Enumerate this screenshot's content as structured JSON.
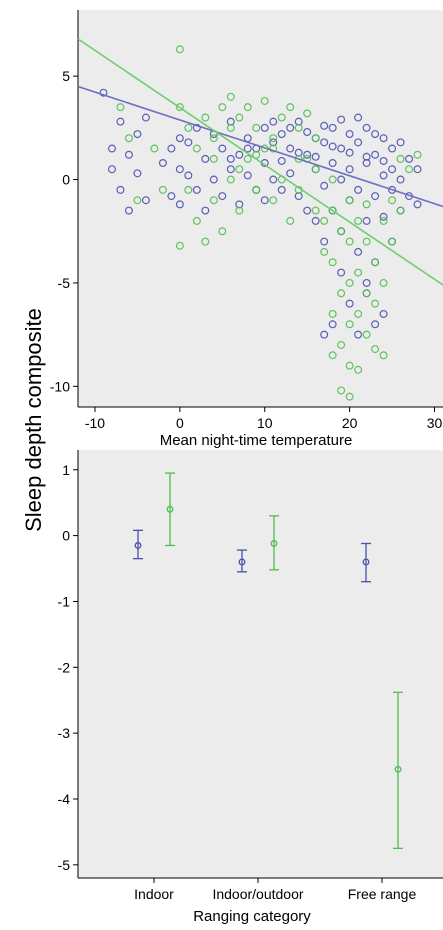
{
  "figure": {
    "ylabel": "Sleep depth composite"
  },
  "colors": {
    "series_blue": "#4a4fb0",
    "series_green": "#4fbf4f",
    "panel_bg": "#ececec",
    "axis": "#000000"
  },
  "chart_data": [
    {
      "type": "scatter",
      "xlabel": "Mean night-time temperature",
      "xlim": [
        -12,
        31
      ],
      "ylim": [
        -11,
        8.2
      ],
      "xticks": [
        -10,
        0,
        10,
        20,
        30
      ],
      "yticks": [
        5,
        0,
        -5,
        -10
      ],
      "grid": false,
      "series": [
        {
          "color": "#4a4fb0",
          "marker": "open-circle",
          "points": [
            [
              -9,
              4.2
            ],
            [
              -8,
              1.5
            ],
            [
              -8,
              0.5
            ],
            [
              -7,
              2.8
            ],
            [
              -7,
              -0.5
            ],
            [
              -6,
              1.2
            ],
            [
              -6,
              -1.5
            ],
            [
              -5,
              2.2
            ],
            [
              -5,
              0.3
            ],
            [
              -4,
              3
            ],
            [
              -4,
              -1
            ],
            [
              -2,
              0.8
            ],
            [
              -1,
              1.5
            ],
            [
              -1,
              -0.8
            ],
            [
              0,
              2
            ],
            [
              0,
              0.5
            ],
            [
              0,
              -1.2
            ],
            [
              1,
              1.8
            ],
            [
              1,
              0.2
            ],
            [
              2,
              2.5
            ],
            [
              2,
              -0.5
            ],
            [
              3,
              1
            ],
            [
              3,
              -1.5
            ],
            [
              4,
              2.2
            ],
            [
              4,
              0
            ],
            [
              5,
              1.5
            ],
            [
              5,
              -0.8
            ],
            [
              6,
              2.8
            ],
            [
              6,
              0.5
            ],
            [
              7,
              1.2
            ],
            [
              7,
              -1.2
            ],
            [
              8,
              2
            ],
            [
              8,
              0.2
            ],
            [
              9,
              1.5
            ],
            [
              9,
              -0.5
            ],
            [
              10,
              2.5
            ],
            [
              10,
              0.8
            ],
            [
              10,
              -1
            ],
            [
              11,
              1.8
            ],
            [
              11,
              0
            ],
            [
              12,
              2.2
            ],
            [
              12,
              -0.5
            ],
            [
              13,
              1.5
            ],
            [
              13,
              0.3
            ],
            [
              14,
              2.8
            ],
            [
              14,
              -0.8
            ],
            [
              15,
              1.2
            ],
            [
              15,
              -1.5
            ],
            [
              16,
              2
            ],
            [
              16,
              0.5
            ],
            [
              16,
              -2
            ],
            [
              17,
              1.8
            ],
            [
              17,
              -0.3
            ],
            [
              17,
              -3
            ],
            [
              18,
              2.5
            ],
            [
              18,
              0.8
            ],
            [
              18,
              -1.5
            ],
            [
              18,
              -7
            ],
            [
              19,
              1.5
            ],
            [
              19,
              0
            ],
            [
              19,
              -2.5
            ],
            [
              19,
              -4.5
            ],
            [
              20,
              2.2
            ],
            [
              20,
              0.5
            ],
            [
              20,
              -1
            ],
            [
              20,
              -6
            ],
            [
              21,
              1.8
            ],
            [
              21,
              -0.5
            ],
            [
              21,
              -3.5
            ],
            [
              22,
              2.5
            ],
            [
              22,
              0.8
            ],
            [
              22,
              -2
            ],
            [
              22,
              -5
            ],
            [
              23,
              1.2
            ],
            [
              23,
              -0.8
            ],
            [
              23,
              -4
            ],
            [
              24,
              2
            ],
            [
              24,
              0.2
            ],
            [
              24,
              -1.8
            ],
            [
              24,
              -6.5
            ],
            [
              25,
              1.5
            ],
            [
              25,
              -0.5
            ],
            [
              25,
              -3
            ],
            [
              26,
              1.8
            ],
            [
              26,
              0
            ],
            [
              26,
              -1.5
            ],
            [
              27,
              1
            ],
            [
              27,
              -0.8
            ],
            [
              28,
              0.5
            ],
            [
              28,
              -1.2
            ],
            [
              6,
              1
            ],
            [
              8,
              1.5
            ],
            [
              11,
              2.8
            ],
            [
              13,
              2.5
            ],
            [
              15,
              2.3
            ],
            [
              17,
              2.6
            ],
            [
              19,
              2.9
            ],
            [
              21,
              3
            ],
            [
              23,
              2.2
            ],
            [
              25,
              0.5
            ],
            [
              22,
              -5.5
            ],
            [
              21,
              -7.5
            ],
            [
              17,
              -7.5
            ],
            [
              23,
              -7
            ],
            [
              12,
              0.9
            ],
            [
              14,
              1.3
            ],
            [
              16,
              1.1
            ],
            [
              18,
              1.6
            ],
            [
              20,
              1.3
            ],
            [
              22,
              1.1
            ],
            [
              24,
              0.9
            ]
          ]
        },
        {
          "color": "#4fbf4f",
          "marker": "open-circle",
          "points": [
            [
              -7,
              3.5
            ],
            [
              -6,
              2
            ],
            [
              -5,
              -1
            ],
            [
              -3,
              1.5
            ],
            [
              -2,
              -0.5
            ],
            [
              0,
              6.3
            ],
            [
              0,
              3.5
            ],
            [
              0,
              -3.2
            ],
            [
              1,
              2.5
            ],
            [
              1,
              -0.5
            ],
            [
              2,
              1.5
            ],
            [
              2,
              -2
            ],
            [
              3,
              3
            ],
            [
              3,
              -3
            ],
            [
              4,
              2
            ],
            [
              4,
              -1
            ],
            [
              5,
              3.5
            ],
            [
              5,
              -2.5
            ],
            [
              6,
              2.5
            ],
            [
              6,
              0
            ],
            [
              6,
              4
            ],
            [
              7,
              3
            ],
            [
              7,
              -1.5
            ],
            [
              8,
              3.5
            ],
            [
              8,
              1
            ],
            [
              9,
              2.5
            ],
            [
              9,
              -0.5
            ],
            [
              10,
              3.8
            ],
            [
              10,
              1.5
            ],
            [
              11,
              2
            ],
            [
              11,
              -1
            ],
            [
              12,
              3
            ],
            [
              12,
              0
            ],
            [
              13,
              3.5
            ],
            [
              13,
              -2
            ],
            [
              14,
              2.5
            ],
            [
              14,
              -0.5
            ],
            [
              15,
              3.2
            ],
            [
              15,
              1
            ],
            [
              16,
              2
            ],
            [
              16,
              -1.5
            ],
            [
              17,
              -2
            ],
            [
              17,
              -3.5
            ],
            [
              18,
              -1.5
            ],
            [
              18,
              -4
            ],
            [
              18,
              -6.5
            ],
            [
              18,
              -8.5
            ],
            [
              19,
              -2.5
            ],
            [
              19,
              -5.5
            ],
            [
              19,
              -8
            ],
            [
              19,
              -10.2
            ],
            [
              20,
              -3
            ],
            [
              20,
              -5
            ],
            [
              20,
              -7
            ],
            [
              20,
              -9
            ],
            [
              20,
              -10.5
            ],
            [
              21,
              -2
            ],
            [
              21,
              -4.5
            ],
            [
              21,
              -6.5
            ],
            [
              21,
              -9.2
            ],
            [
              22,
              -3
            ],
            [
              22,
              -5.5
            ],
            [
              22,
              -7.5
            ],
            [
              23,
              -4
            ],
            [
              23,
              -6
            ],
            [
              23,
              -8.2
            ],
            [
              24,
              -2
            ],
            [
              24,
              -5
            ],
            [
              24,
              -8.5
            ],
            [
              25,
              -1
            ],
            [
              25,
              -3
            ],
            [
              26,
              1
            ],
            [
              26,
              -1.5
            ],
            [
              27,
              0.5
            ],
            [
              28,
              1.2
            ],
            [
              4,
              1
            ],
            [
              7,
              0.5
            ],
            [
              9,
              1.2
            ],
            [
              11,
              1.5
            ],
            [
              14,
              1
            ],
            [
              16,
              0.5
            ],
            [
              18,
              0
            ],
            [
              20,
              -1
            ],
            [
              22,
              -1.2
            ]
          ]
        }
      ],
      "fit_lines": [
        {
          "color": "#6c6fc2",
          "x": [
            -12,
            31
          ],
          "y": [
            4.5,
            -1.3
          ]
        },
        {
          "color": "#6fcf6f",
          "x": [
            -12,
            31
          ],
          "y": [
            6.8,
            -5.1
          ]
        }
      ]
    },
    {
      "type": "errorbar",
      "xlabel": "Ranging category",
      "categories": [
        "Indoor",
        "Indoor/outdoor",
        "Free range"
      ],
      "ylim": [
        -5.2,
        1.3
      ],
      "yticks": [
        1,
        0,
        -1,
        -2,
        -3,
        -4,
        -5
      ],
      "grid": false,
      "series": [
        {
          "color": "#4a4fb0",
          "mean": [
            -0.15,
            -0.4,
            -0.4
          ],
          "low": [
            -0.35,
            -0.55,
            -0.7
          ],
          "high": [
            0.08,
            -0.22,
            -0.12
          ]
        },
        {
          "color": "#4fbf4f",
          "mean": [
            0.4,
            -0.12,
            -3.55
          ],
          "low": [
            -0.15,
            -0.52,
            -4.75
          ],
          "high": [
            0.95,
            0.3,
            -2.38
          ]
        }
      ]
    }
  ]
}
